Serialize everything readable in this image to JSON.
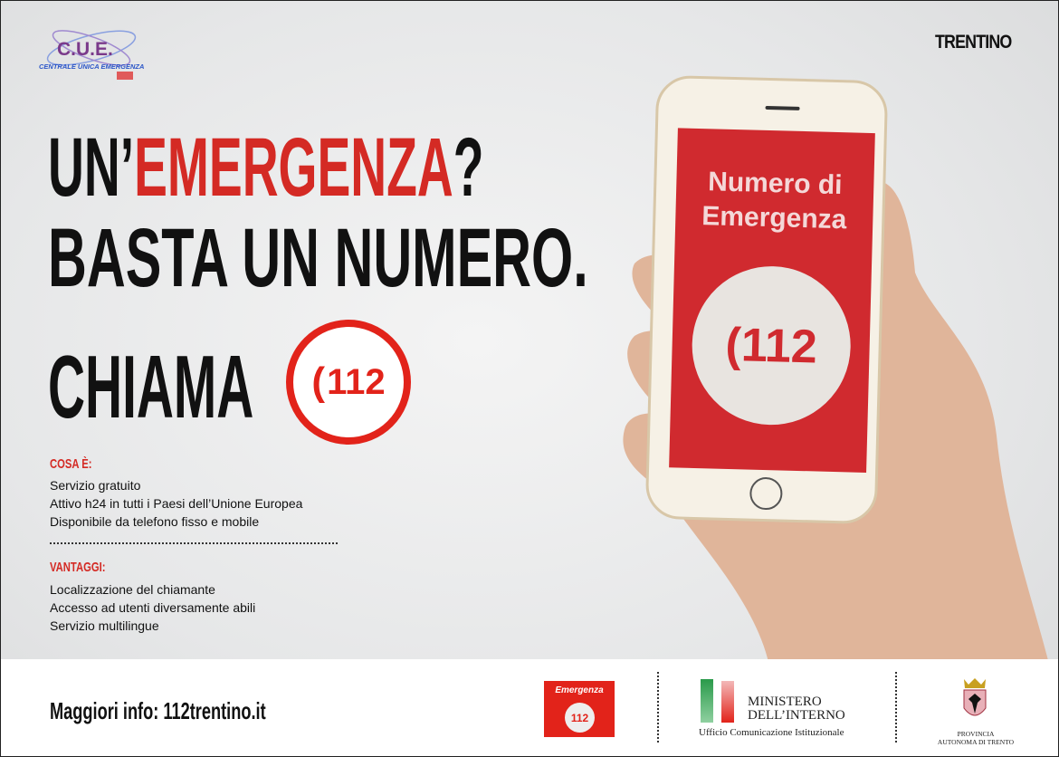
{
  "logos": {
    "cue_title": "C.U.E.",
    "cue_subtitle": "CENTRALE UNICA EMERGENZA",
    "trentino": "TRENTINO"
  },
  "headline": {
    "line1_pre": "UN’",
    "line1_red": "EMERGENZA",
    "line1_post": "?",
    "line2": "BASTA UN NUMERO.",
    "call": "CHIAMA",
    "number": "112"
  },
  "phone": {
    "screen_title_1": "Numero di",
    "screen_title_2": "Emergenza",
    "number": "112"
  },
  "cosa": {
    "title": "COSA È:",
    "items": [
      "Servizio gratuito",
      "Attivo h24 in tutti i Paesi dell’Unione Europea",
      "Disponibile da telefono fisso e mobile"
    ]
  },
  "vantaggi": {
    "title": "VANTAGGI:",
    "items": [
      "Localizzazione del chiamante",
      "Accesso ad utenti diversamente abili",
      "Servizio multilingue"
    ]
  },
  "footer": {
    "info": "Maggiori info: 112trentino.it",
    "emergenza_logo": "Emergenza",
    "emergenza_number": "112",
    "ministero_1": "MINISTERO",
    "ministero_2": "DELL’INTERNO",
    "ministero_sub": "Ufficio Comunicazione Istituzionale",
    "provincia_1": "PROVINCIA",
    "provincia_2": "AUTONOMA DI TRENTO"
  },
  "colors": {
    "red": "#e2231a",
    "text": "#111111"
  }
}
